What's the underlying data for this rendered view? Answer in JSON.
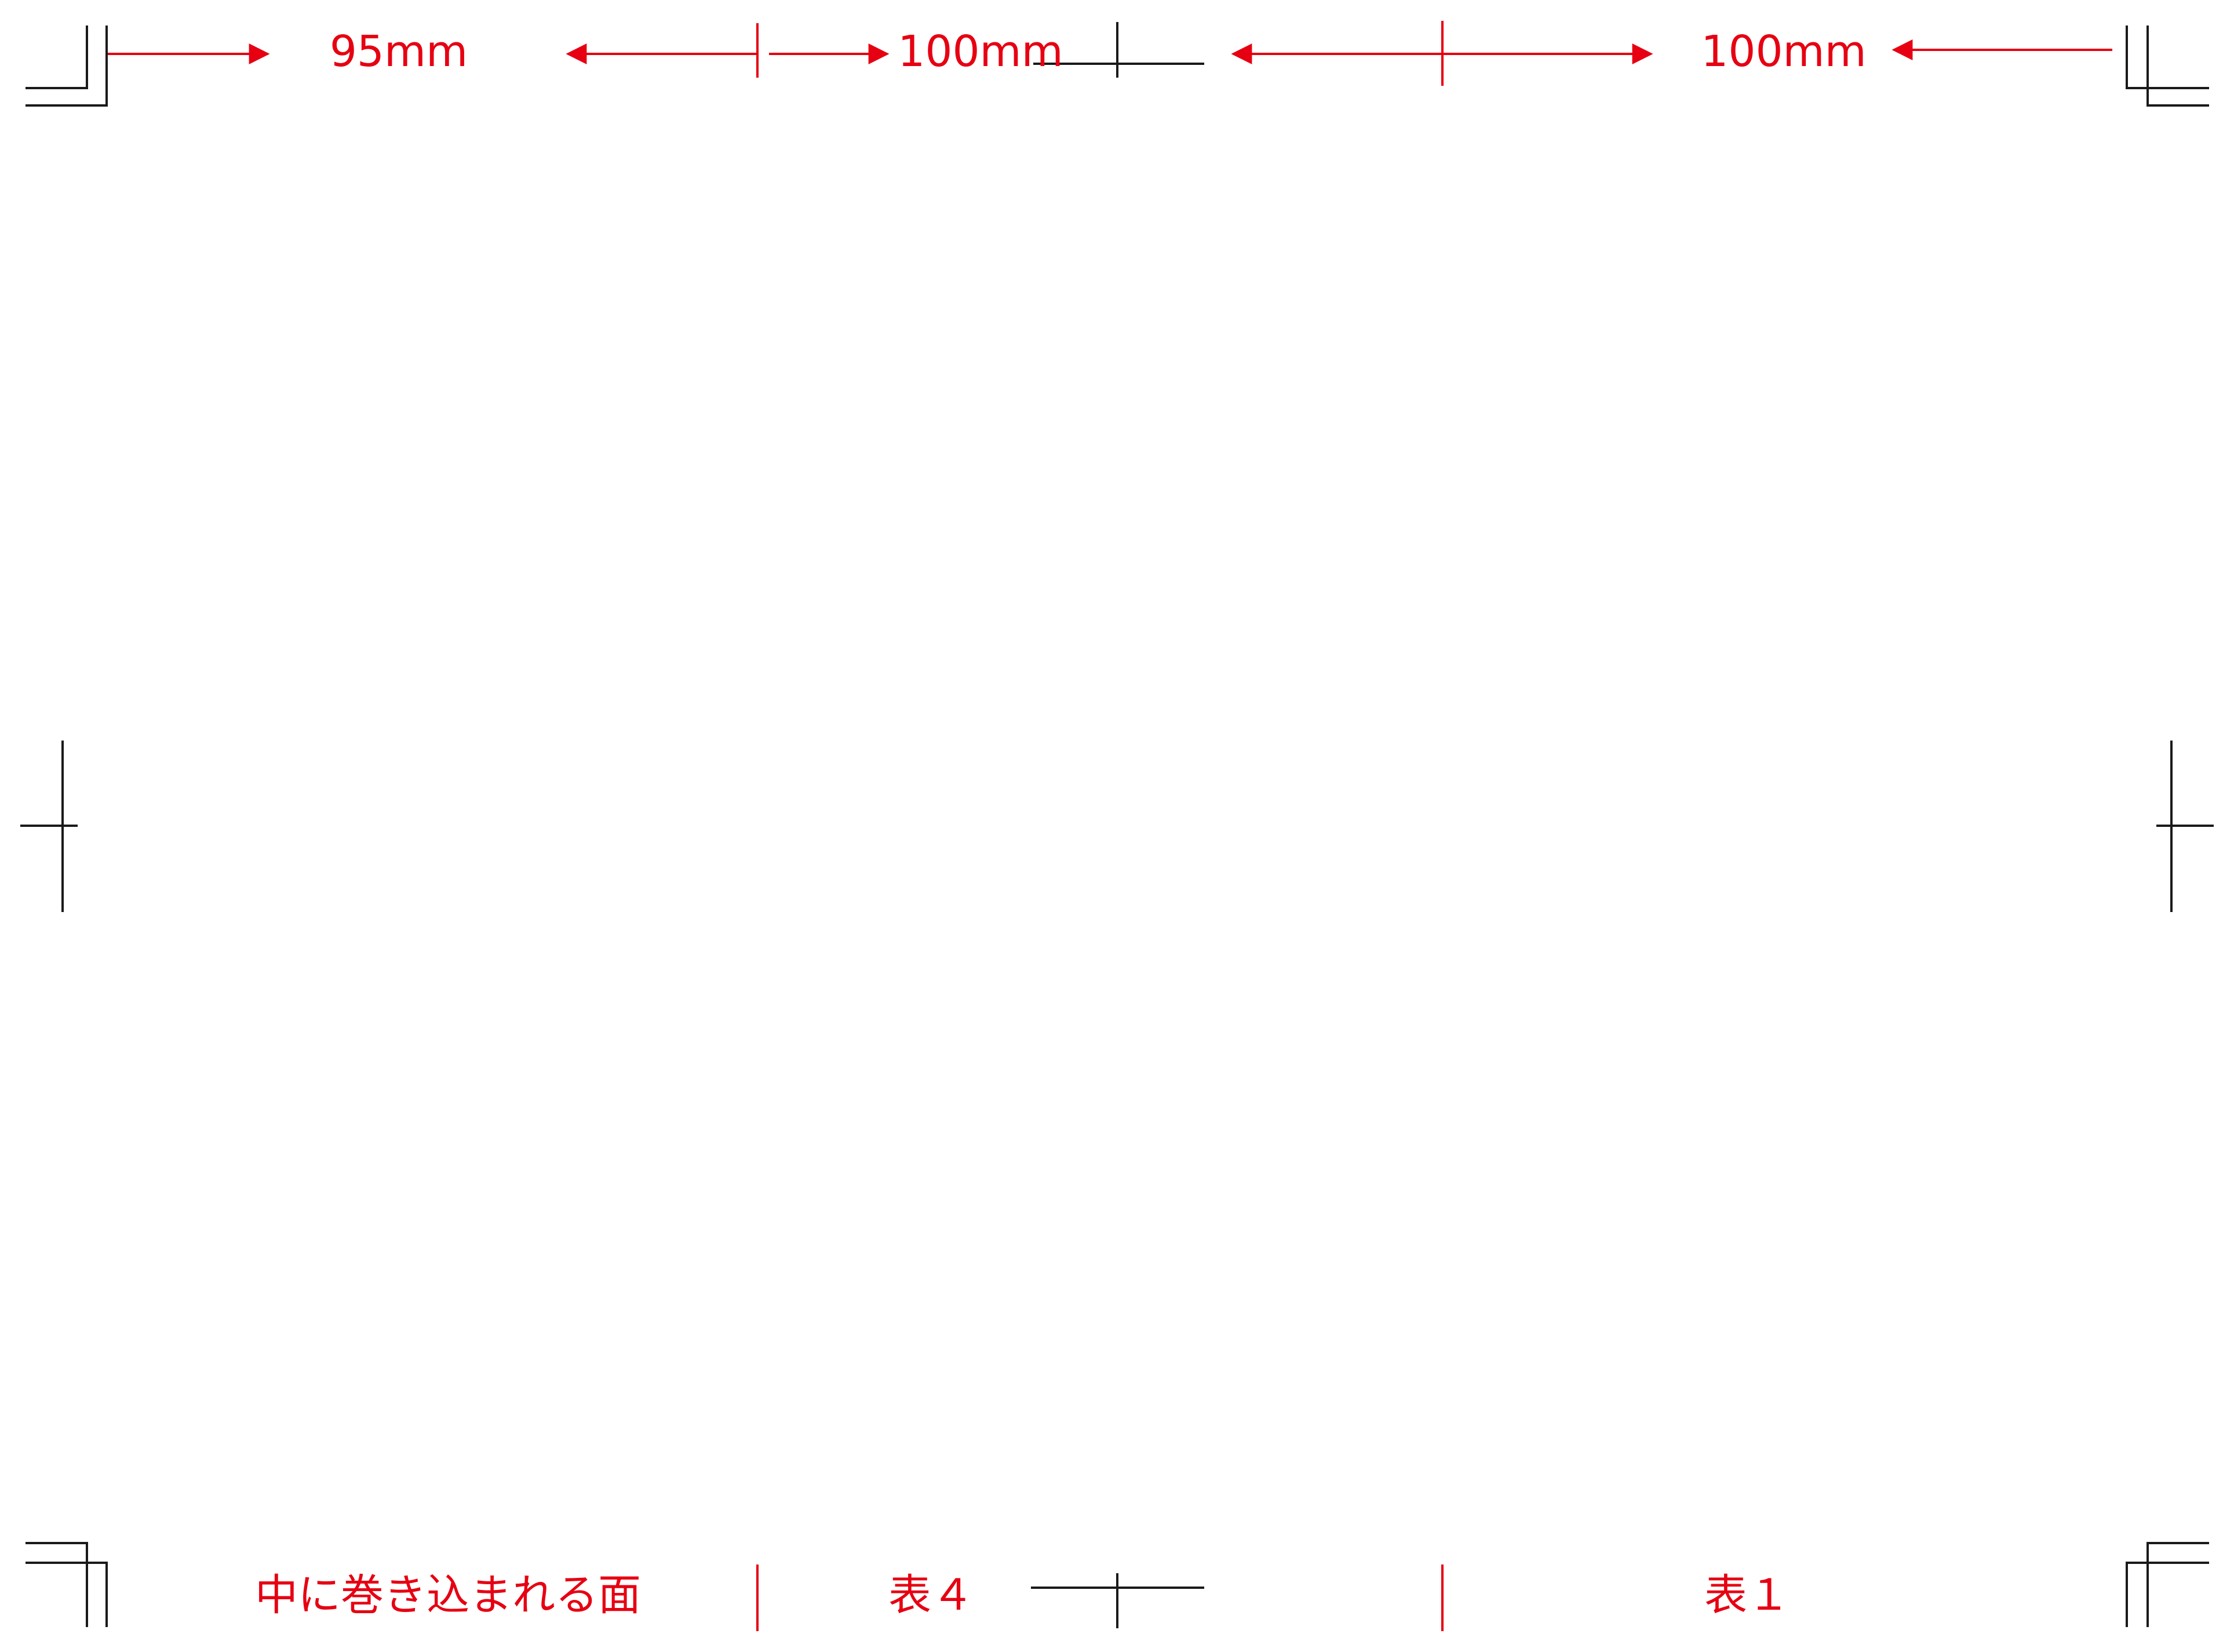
{
  "colors": {
    "annotation": "#e60012",
    "crop_mark": "#1a1a1a",
    "background": "#ffffff"
  },
  "dimensions": {
    "left_panel": "95mm",
    "middle_panel": "100mm",
    "right_panel": "100mm"
  },
  "panels": {
    "left": "中に巻き込まれる面",
    "middle": "表４",
    "right": "表１"
  }
}
